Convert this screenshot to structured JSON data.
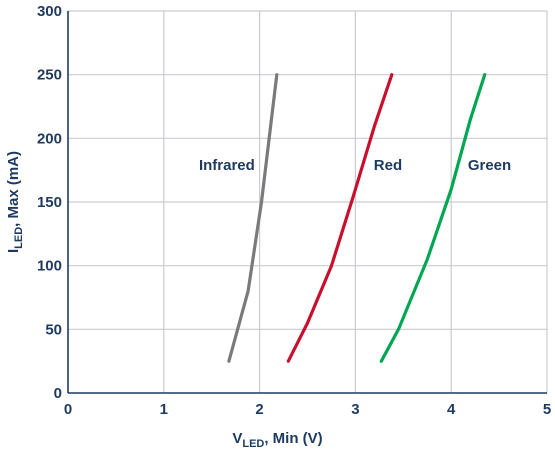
{
  "chart_data": {
    "type": "line",
    "xlabel": {
      "main": "V",
      "sub": "LED",
      "rest": ", Min (V)"
    },
    "ylabel": {
      "main": "I",
      "sub": "LED",
      "rest": ", Max (mA)"
    },
    "xlim": [
      0,
      5
    ],
    "ylim": [
      0,
      300
    ],
    "xticks": [
      "0",
      "1",
      "2",
      "3",
      "4",
      "5"
    ],
    "yticks": [
      "0",
      "50",
      "100",
      "150",
      "200",
      "250",
      "300"
    ],
    "grid": true,
    "series": [
      {
        "name": "Infrared",
        "color": "#7a7a7a",
        "x": [
          1.68,
          1.88,
          2.02,
          2.18
        ],
        "y": [
          25,
          80,
          150,
          250
        ]
      },
      {
        "name": "Red",
        "color": "#c8102e",
        "x": [
          2.3,
          2.5,
          2.75,
          2.98,
          3.2,
          3.38
        ],
        "y": [
          25,
          55,
          100,
          155,
          210,
          250
        ]
      },
      {
        "name": "Green",
        "color": "#00a651",
        "x": [
          3.27,
          3.45,
          3.75,
          4.0,
          4.2,
          4.35
        ],
        "y": [
          25,
          50,
          105,
          160,
          215,
          250
        ]
      }
    ]
  }
}
